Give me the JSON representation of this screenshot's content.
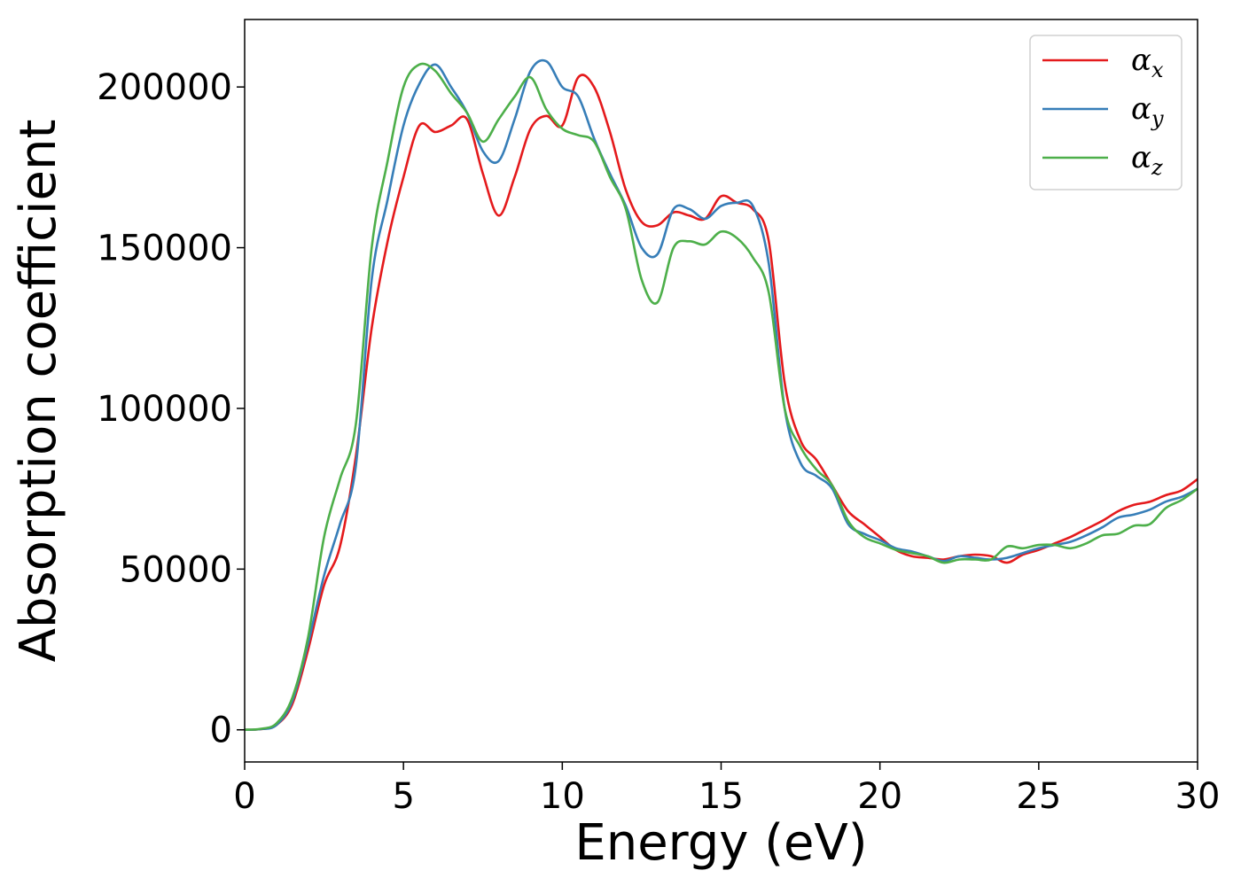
{
  "chart_data": {
    "type": "line",
    "title": "",
    "xlabel": "Energy (eV)",
    "ylabel": "Absorption coefficient",
    "xlim": [
      0,
      30
    ],
    "ylim": [
      -10000,
      221000
    ],
    "xticks": [
      0,
      5,
      10,
      15,
      20,
      25,
      30
    ],
    "xtick_labels": [
      "0",
      "5",
      "10",
      "15",
      "20",
      "25",
      "30"
    ],
    "yticks": [
      0,
      50000,
      100000,
      150000,
      200000
    ],
    "ytick_labels": [
      "0",
      "50000",
      "100000",
      "150000",
      "200000"
    ],
    "grid": false,
    "legend_position": "top-right",
    "series": [
      {
        "name": "α_x",
        "label_main": "α",
        "label_sub": "x",
        "color": "#e41a1c",
        "x": [
          0,
          0.5,
          1.0,
          1.5,
          2.0,
          2.5,
          3.0,
          3.5,
          4.0,
          4.5,
          5.0,
          5.5,
          6.0,
          6.5,
          7.0,
          7.5,
          8.0,
          8.5,
          9.0,
          9.5,
          10.0,
          10.5,
          11.0,
          11.5,
          12.0,
          12.5,
          13.0,
          13.5,
          14.0,
          14.5,
          15.0,
          15.5,
          16.0,
          16.5,
          17.0,
          17.5,
          18.0,
          18.5,
          19.0,
          19.5,
          20.0,
          20.5,
          21.0,
          21.5,
          22.0,
          22.5,
          23.0,
          23.5,
          24.0,
          24.5,
          25.0,
          25.5,
          26.0,
          26.5,
          27.0,
          27.5,
          28.0,
          28.5,
          29.0,
          29.5,
          30.0
        ],
        "y": [
          0,
          200,
          1500,
          8000,
          25000,
          45000,
          57000,
          85000,
          125000,
          152000,
          172000,
          188000,
          186000,
          188000,
          190000,
          173000,
          160000,
          172000,
          187000,
          191000,
          188000,
          203000,
          200000,
          186000,
          168000,
          158000,
          157000,
          161000,
          160000,
          159000,
          166000,
          164000,
          162000,
          152000,
          108000,
          90000,
          84000,
          76000,
          68000,
          64000,
          60000,
          56000,
          54000,
          53500,
          53000,
          54000,
          54500,
          54000,
          52000,
          54500,
          56000,
          58000,
          60000,
          62500,
          65000,
          68000,
          70000,
          71000,
          73000,
          74500,
          78000
        ]
      },
      {
        "name": "α_y",
        "label_main": "α",
        "label_sub": "y",
        "color": "#377eb8",
        "x": [
          0,
          0.5,
          1.0,
          1.5,
          2.0,
          2.5,
          3.0,
          3.5,
          4.0,
          4.5,
          5.0,
          5.5,
          6.0,
          6.5,
          7.0,
          7.5,
          8.0,
          8.5,
          9.0,
          9.5,
          10.0,
          10.5,
          11.0,
          11.5,
          12.0,
          12.5,
          13.0,
          13.5,
          14.0,
          14.5,
          15.0,
          15.5,
          16.0,
          16.5,
          17.0,
          17.5,
          18.0,
          18.5,
          19.0,
          19.5,
          20.0,
          20.5,
          21.0,
          21.5,
          22.0,
          22.5,
          23.0,
          23.5,
          24.0,
          24.5,
          25.0,
          25.5,
          26.0,
          26.5,
          27.0,
          27.5,
          28.0,
          28.5,
          29.0,
          29.5,
          30.0
        ],
        "y": [
          0,
          200,
          1500,
          9000,
          27000,
          48000,
          64000,
          82000,
          140000,
          165000,
          188000,
          201000,
          207000,
          200000,
          192000,
          180000,
          177000,
          190000,
          205000,
          208000,
          200000,
          197000,
          184000,
          173000,
          163000,
          150000,
          148000,
          162000,
          162000,
          159000,
          163000,
          164000,
          163000,
          145000,
          100000,
          83000,
          79000,
          75000,
          64000,
          61000,
          59000,
          56500,
          55500,
          54000,
          52500,
          54000,
          53500,
          53000,
          53500,
          55000,
          56500,
          57500,
          58500,
          60500,
          63000,
          66000,
          67000,
          68500,
          71000,
          72500,
          75000
        ]
      },
      {
        "name": "α_z",
        "label_main": "α",
        "label_sub": "z",
        "color": "#4daf4a",
        "x": [
          0,
          0.5,
          1.0,
          1.5,
          2.0,
          2.5,
          3.0,
          3.5,
          4.0,
          4.5,
          5.0,
          5.5,
          6.0,
          6.5,
          7.0,
          7.5,
          8.0,
          8.5,
          9.0,
          9.5,
          10.0,
          10.5,
          11.0,
          11.5,
          12.0,
          12.5,
          13.0,
          13.5,
          14.0,
          14.5,
          15.0,
          15.5,
          16.0,
          16.5,
          17.0,
          17.5,
          18.0,
          18.5,
          19.0,
          19.5,
          20.0,
          20.5,
          21.0,
          21.5,
          22.0,
          22.5,
          23.0,
          23.5,
          24.0,
          24.5,
          25.0,
          25.5,
          26.0,
          26.5,
          27.0,
          27.5,
          28.0,
          28.5,
          29.0,
          29.5,
          30.0
        ],
        "y": [
          0,
          300,
          2000,
          10000,
          29000,
          60000,
          78000,
          95000,
          150000,
          177000,
          200000,
          207000,
          205000,
          198000,
          192000,
          183000,
          190000,
          197000,
          203000,
          193000,
          187000,
          185000,
          183000,
          172000,
          162000,
          140000,
          133000,
          150000,
          152000,
          151000,
          155000,
          153000,
          147000,
          136000,
          100000,
          88000,
          81000,
          76000,
          65000,
          60000,
          58000,
          56000,
          55000,
          54000,
          52000,
          53000,
          53000,
          53000,
          57000,
          56500,
          57500,
          57500,
          56500,
          58000,
          60500,
          61000,
          63500,
          64000,
          69000,
          71500,
          75000
        ]
      }
    ]
  }
}
